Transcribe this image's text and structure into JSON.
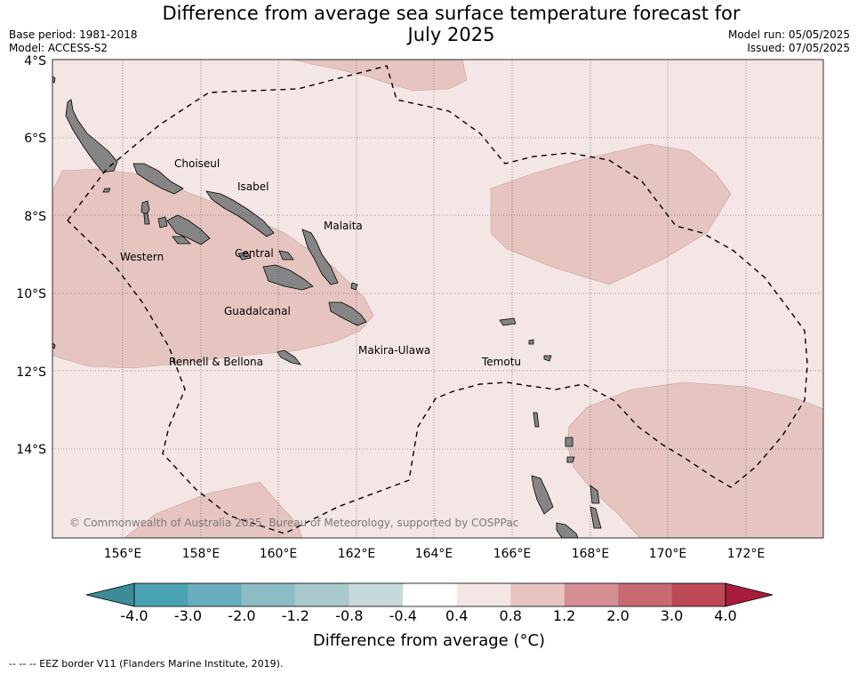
{
  "title_line1": "Difference from average sea surface temperature forecast for",
  "title_line2": "July 2025",
  "meta_left": {
    "base_period": "Base period: 1981-2018",
    "model": "Model: ACCESS-S2"
  },
  "meta_right": {
    "model_run": "Model run: 05/05/2025",
    "issued": "Issued: 07/05/2025"
  },
  "map": {
    "lon_ticks": [
      "156°E",
      "158°E",
      "160°E",
      "162°E",
      "164°E",
      "166°E",
      "168°E",
      "170°E",
      "172°E"
    ],
    "lat_ticks": [
      "4°S",
      "6°S",
      "8°S",
      "10°S",
      "12°S",
      "14°S"
    ],
    "place_labels": [
      "Choiseul",
      "Isabel",
      "Malaita",
      "Western",
      "Central",
      "Guadalcanal",
      "Rennell & Bellona",
      "Makira-Ulawa",
      "Temotu"
    ],
    "copyright": "© Commonwealth of Australia 2025, Bureau of Meteorology, supported by COSPPac",
    "eez_line": "dashed black"
  },
  "colorbar": {
    "ticks": [
      "-4.0",
      "-3.0",
      "-2.0",
      "-1.2",
      "-0.8",
      "-0.4",
      "0.4",
      "0.8",
      "1.2",
      "2.0",
      "3.0",
      "4.0"
    ],
    "colors": [
      "#3b8c97",
      "#4aa2b2",
      "#6aaebd",
      "#8dbdc6",
      "#a9c9cc",
      "#c8d9dc",
      "#ffffff",
      "#f4e6e5",
      "#e6c5c0",
      "#d68e95",
      "#c86a74",
      "#bd4858",
      "#a81d3c"
    ],
    "label": "Difference from average ( $^\\circ$C)",
    "label_display": "Difference from average (°C)"
  },
  "footnote": "-- -- -- EEZ border V11 (Flanders Marine Institute, 2019)."
}
